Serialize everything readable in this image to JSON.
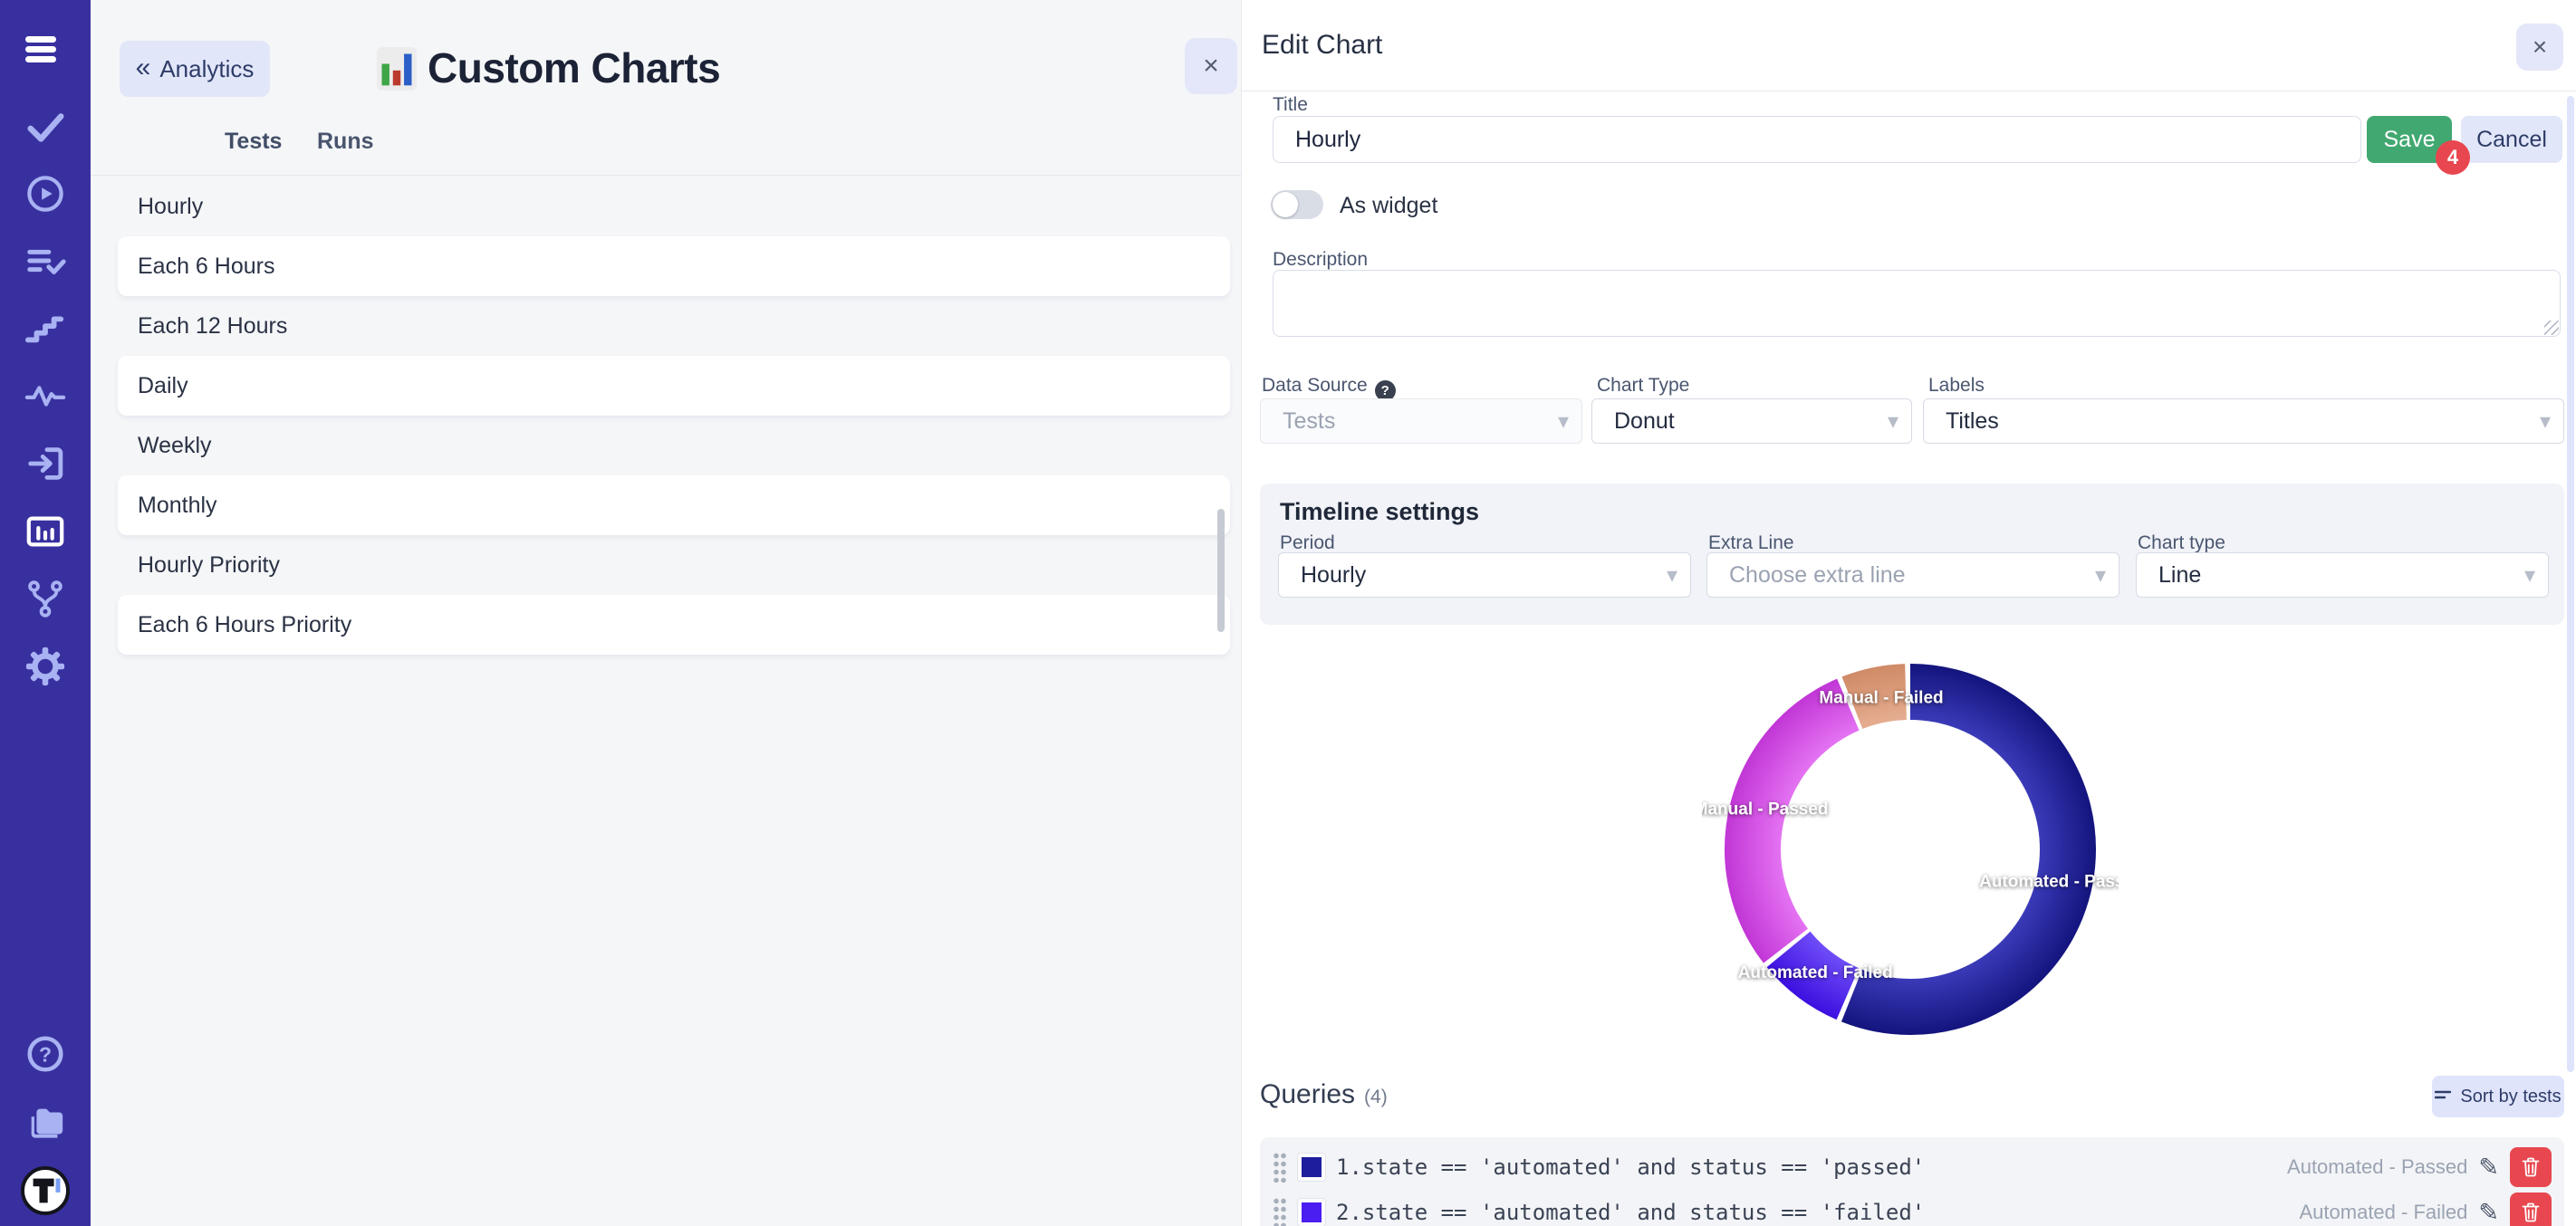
{
  "theme": {
    "sidebar_bg": "#38309f",
    "accent_lavender": "#e2e6f9",
    "save_green": "#42a871",
    "danger_red": "#e8474f",
    "page_bg": "#f5f6f8"
  },
  "sidebar": {
    "icons": [
      "menu",
      "check",
      "play-circle",
      "list-check",
      "steps",
      "activity",
      "sign-in",
      "bar-chart",
      "branch",
      "settings",
      "help",
      "projects",
      "logo"
    ]
  },
  "header": {
    "back_label": "Analytics",
    "title": "Custom Charts"
  },
  "tabs": {
    "tests": "Tests",
    "runs": "Runs"
  },
  "chart_list": {
    "items": [
      "Hourly",
      "Each 6 Hours",
      "Each 12 Hours",
      "Daily",
      "Weekly",
      "Monthly",
      "Hourly Priority",
      "Each 6 Hours Priority"
    ]
  },
  "edit_panel": {
    "heading": "Edit Chart",
    "close_label": "×",
    "title_field": {
      "label": "Title",
      "value": "Hourly"
    },
    "save_label": "Save",
    "cancel_label": "Cancel",
    "badge": "4",
    "as_widget_label": "As widget",
    "description_label": "Description",
    "data_source": {
      "label": "Data Source",
      "value": "Tests",
      "help": "?"
    },
    "chart_type": {
      "label": "Chart Type",
      "value": "Donut"
    },
    "labels_select": {
      "label": "Labels",
      "value": "Titles"
    },
    "timeline": {
      "heading": "Timeline settings",
      "period": {
        "label": "Period",
        "value": "Hourly"
      },
      "extra_line": {
        "label": "Extra Line",
        "value": "Choose extra line"
      },
      "chart_type": {
        "label": "Chart type",
        "value": "Line"
      }
    },
    "queries": {
      "heading": "Queries",
      "count": "(4)",
      "sort_label": "Sort by tests",
      "rows": [
        {
          "index": "1.",
          "query": "state == 'automated' and status == 'passed'",
          "label": "Automated - Passed",
          "color": "#1d1d9e"
        },
        {
          "index": "2.",
          "query": "state == 'automated' and status == 'failed'",
          "label": "Automated - Failed",
          "color": "#4a1df0"
        }
      ]
    }
  },
  "chart_data": {
    "type": "pie",
    "donut": true,
    "labels": [
      "Automated - Passed",
      "Automated - Failed",
      "Manual - Passed",
      "Manual - Failed"
    ],
    "values": [
      56.5,
      8,
      29.5,
      6
    ],
    "colors": [
      "#1d1d9e",
      "#4a1df0",
      "#d44fe0",
      "#dc9a7a"
    ],
    "colors_inner": [
      "#3a3ab8",
      "#6f4cf8",
      "#e472f2",
      "#e5ad90"
    ],
    "colors_outer": [
      "#14147e",
      "#3c10e0",
      "#c136d6",
      "#d08a66"
    ],
    "legend_position": "on-slice",
    "title": ""
  }
}
